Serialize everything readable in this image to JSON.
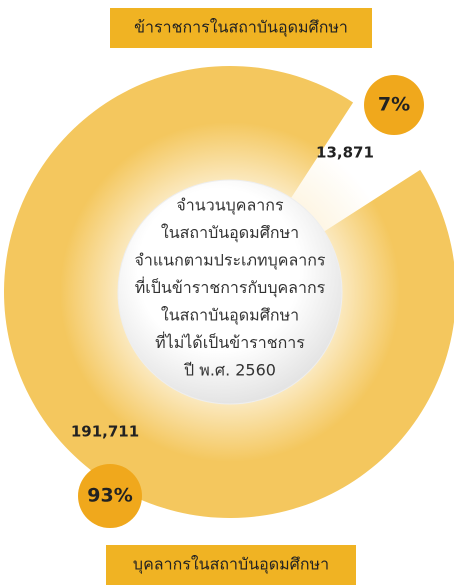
{
  "chart_data": {
    "type": "pie",
    "title": [
      "จำนวนบุคลากร",
      "ในสถาบันอุดมศึกษา",
      "จำแนกตามประเภทบุคลากร",
      "ที่เป็นข้าราชการกับบุคลากร",
      "ในสถาบันอุดมศึกษา",
      "ที่ไม่ได้เป็นข้าราชการ",
      "ปี พ.ศ. 2560"
    ],
    "categories": [
      "ข้าราชการในสถาบันอุดมศึกษา",
      "บุคลากรในสถาบันอุดมศึกษา"
    ],
    "values": [
      13871,
      191711
    ],
    "value_labels": [
      "13,871",
      "191,711"
    ],
    "percents": [
      7,
      93
    ],
    "percent_labels": [
      "7%",
      "93%"
    ],
    "colors": [
      "#ffffff",
      "#f4c75e"
    ]
  }
}
